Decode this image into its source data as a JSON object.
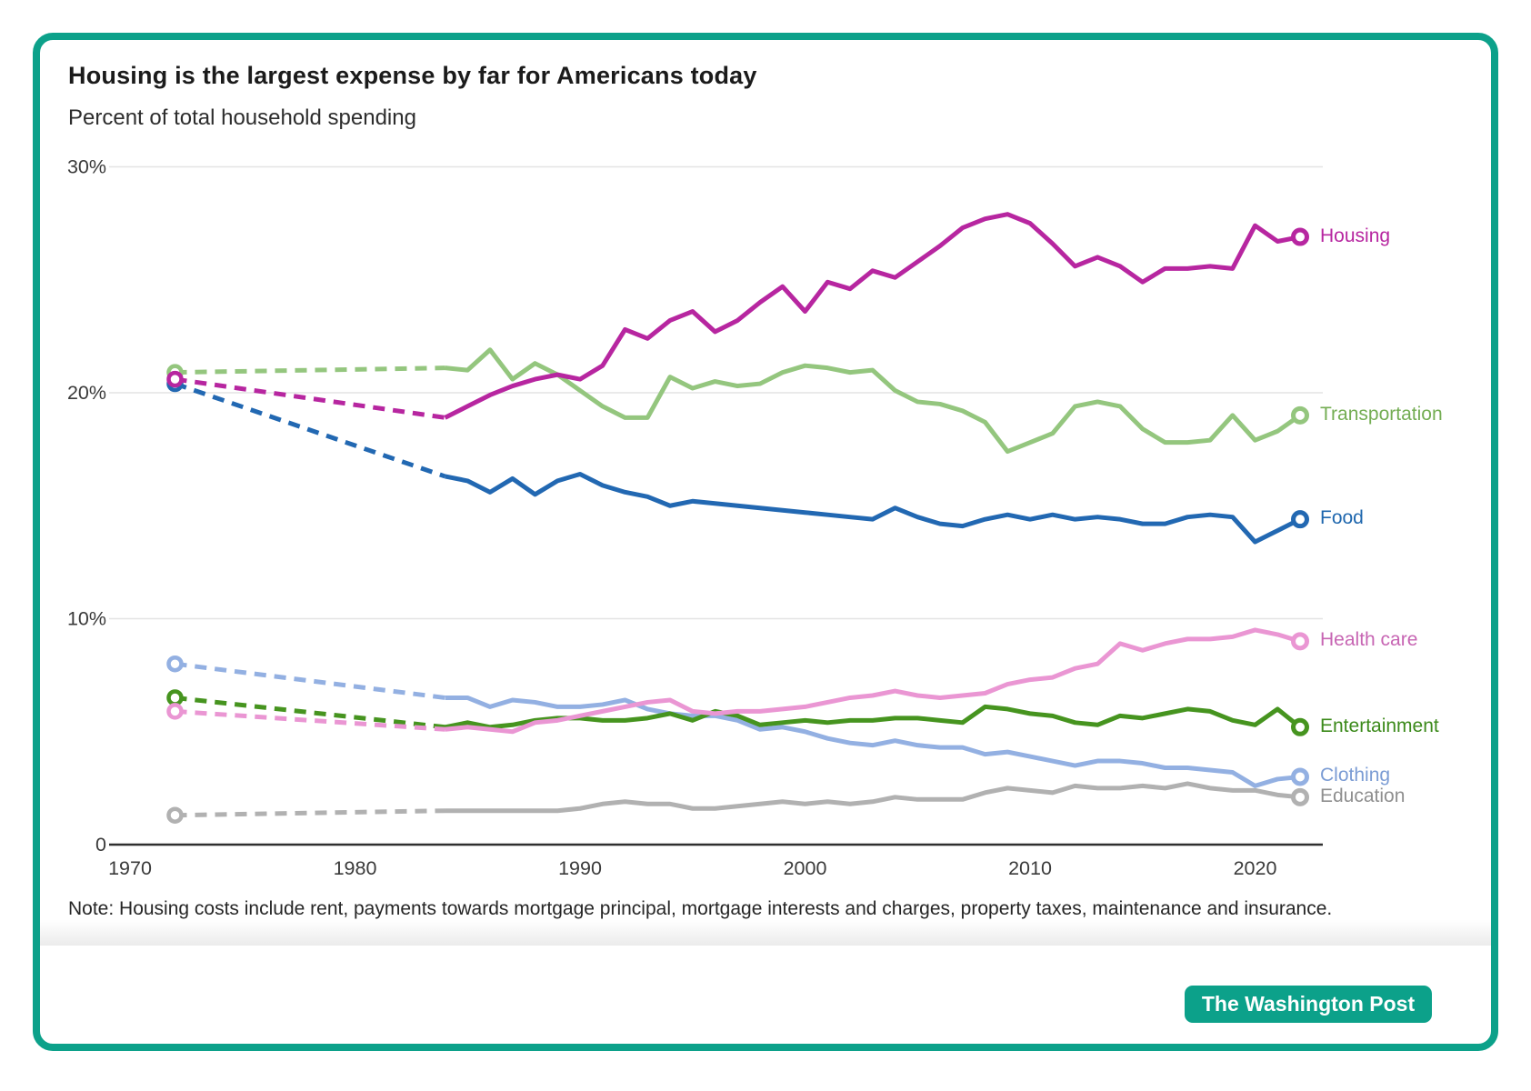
{
  "header": {
    "title": "Housing is the largest expense by far for Americans today",
    "subtitle": "Percent of total household spending"
  },
  "footer": {
    "note": "Note: Housing costs include rent, payments towards mortgage principal, mortgage interests and charges, property taxes, maintenance and insurance.",
    "brand": "The Washington Post",
    "brand_color": "#0ca18a"
  },
  "chart_data": {
    "type": "line",
    "title": "Housing is the largest expense by far for Americans today",
    "subtitle_as_ylabel": "Percent of total household spending",
    "x": [
      1972,
      1984,
      1985,
      1986,
      1987,
      1988,
      1989,
      1990,
      1991,
      1992,
      1993,
      1994,
      1995,
      1996,
      1997,
      1998,
      1999,
      2000,
      2001,
      2002,
      2003,
      2004,
      2005,
      2006,
      2007,
      2008,
      2009,
      2010,
      2011,
      2012,
      2013,
      2014,
      2015,
      2016,
      2017,
      2018,
      2019,
      2020,
      2021,
      2022
    ],
    "dashed_segment": {
      "from": 1972,
      "to": 1984,
      "meaning": "interpolated between surveys"
    },
    "xlim": [
      1969,
      2023
    ],
    "ylim": [
      0,
      31
    ],
    "grid": "horizontal-only",
    "legend_position": "right-of-line-ends",
    "x_ticks": [
      {
        "value": 1970,
        "label": "1970"
      },
      {
        "value": 1980,
        "label": "1980"
      },
      {
        "value": 1990,
        "label": "1990"
      },
      {
        "value": 2000,
        "label": "2000"
      },
      {
        "value": 2010,
        "label": "2010"
      },
      {
        "value": 2020,
        "label": "2020"
      }
    ],
    "y_ticks": [
      {
        "value": 30,
        "label": "30%"
      },
      {
        "value": 20,
        "label": "20%"
      },
      {
        "value": 10,
        "label": "10%"
      },
      {
        "value": 0,
        "label": "0"
      }
    ],
    "series": [
      {
        "name": "Housing",
        "color": "#b726a0",
        "label_color": "#b726a0",
        "values": [
          20.6,
          18.9,
          19.4,
          19.9,
          20.3,
          20.6,
          20.8,
          20.6,
          21.2,
          22.8,
          22.4,
          23.2,
          23.6,
          22.7,
          23.2,
          24.0,
          24.7,
          23.6,
          24.9,
          24.6,
          25.4,
          25.1,
          25.8,
          26.5,
          27.3,
          27.7,
          27.9,
          27.5,
          26.6,
          25.6,
          26.0,
          25.6,
          24.9,
          25.5,
          25.5,
          25.6,
          25.5,
          27.4,
          26.7,
          26.9
        ]
      },
      {
        "name": "Transportation",
        "color": "#94c67e",
        "label_color": "#74ad53",
        "values": [
          20.9,
          21.1,
          21.0,
          21.9,
          20.6,
          21.3,
          20.8,
          20.1,
          19.4,
          18.9,
          18.9,
          20.7,
          20.2,
          20.5,
          20.3,
          20.4,
          20.9,
          21.2,
          21.1,
          20.9,
          21.0,
          20.1,
          19.6,
          19.5,
          19.2,
          18.7,
          17.4,
          17.8,
          18.2,
          19.4,
          19.6,
          19.4,
          18.4,
          17.8,
          17.8,
          17.9,
          19.0,
          17.9,
          18.3,
          19.0
        ]
      },
      {
        "name": "Food",
        "color": "#2268b2",
        "label_color": "#1f67ae",
        "values": [
          20.4,
          16.3,
          16.1,
          15.6,
          16.2,
          15.5,
          16.1,
          16.4,
          15.9,
          15.6,
          15.4,
          15.0,
          15.2,
          15.1,
          15.0,
          14.9,
          14.8,
          14.7,
          14.6,
          14.5,
          14.4,
          14.9,
          14.5,
          14.2,
          14.1,
          14.4,
          14.6,
          14.4,
          14.6,
          14.4,
          14.5,
          14.4,
          14.2,
          14.2,
          14.5,
          14.6,
          14.5,
          13.4,
          13.9,
          14.4
        ]
      },
      {
        "name": "Health care",
        "color": "#ea96d3",
        "label_color": "#c765b3",
        "values": [
          5.9,
          5.1,
          5.2,
          5.1,
          5.0,
          5.4,
          5.5,
          5.7,
          5.9,
          6.1,
          6.3,
          6.4,
          5.9,
          5.8,
          5.9,
          5.9,
          6.0,
          6.1,
          6.3,
          6.5,
          6.6,
          6.8,
          6.6,
          6.5,
          6.6,
          6.7,
          7.1,
          7.3,
          7.4,
          7.8,
          8.0,
          8.9,
          8.6,
          8.9,
          9.1,
          9.1,
          9.2,
          9.5,
          9.3,
          9.0
        ]
      },
      {
        "name": "Entertainment",
        "color": "#46941f",
        "label_color": "#3c8a1b",
        "values": [
          6.5,
          5.2,
          5.4,
          5.2,
          5.3,
          5.5,
          5.6,
          5.6,
          5.5,
          5.5,
          5.6,
          5.8,
          5.5,
          5.9,
          5.7,
          5.3,
          5.4,
          5.5,
          5.4,
          5.5,
          5.5,
          5.6,
          5.6,
          5.5,
          5.4,
          6.1,
          6.0,
          5.8,
          5.7,
          5.4,
          5.3,
          5.7,
          5.6,
          5.8,
          6.0,
          5.9,
          5.5,
          5.3,
          6.0,
          5.2
        ]
      },
      {
        "name": "Clothing",
        "color": "#93b0e2",
        "label_color": "#7b9cd4",
        "values": [
          8.0,
          6.5,
          6.5,
          6.1,
          6.4,
          6.3,
          6.1,
          6.1,
          6.2,
          6.4,
          6.0,
          5.8,
          5.7,
          5.7,
          5.5,
          5.1,
          5.2,
          5.0,
          4.7,
          4.5,
          4.4,
          4.6,
          4.4,
          4.3,
          4.3,
          4.0,
          4.1,
          3.9,
          3.7,
          3.5,
          3.7,
          3.7,
          3.6,
          3.4,
          3.4,
          3.3,
          3.2,
          2.6,
          2.9,
          3.0
        ]
      },
      {
        "name": "Education",
        "color": "#b1b1b1",
        "label_color": "#8f8f8f",
        "values": [
          1.3,
          1.5,
          1.5,
          1.5,
          1.5,
          1.5,
          1.5,
          1.6,
          1.8,
          1.9,
          1.8,
          1.8,
          1.6,
          1.6,
          1.7,
          1.8,
          1.9,
          1.8,
          1.9,
          1.8,
          1.9,
          2.1,
          2.0,
          2.0,
          2.0,
          2.3,
          2.5,
          2.4,
          2.3,
          2.6,
          2.5,
          2.5,
          2.6,
          2.5,
          2.7,
          2.5,
          2.4,
          2.4,
          2.2,
          2.1
        ]
      }
    ],
    "style_colors": {
      "gridline": "#e4e4e4",
      "axis_line": "#2f2f2f",
      "tick_text": "#3a3a3a",
      "card_border": "#0ca18a"
    }
  }
}
